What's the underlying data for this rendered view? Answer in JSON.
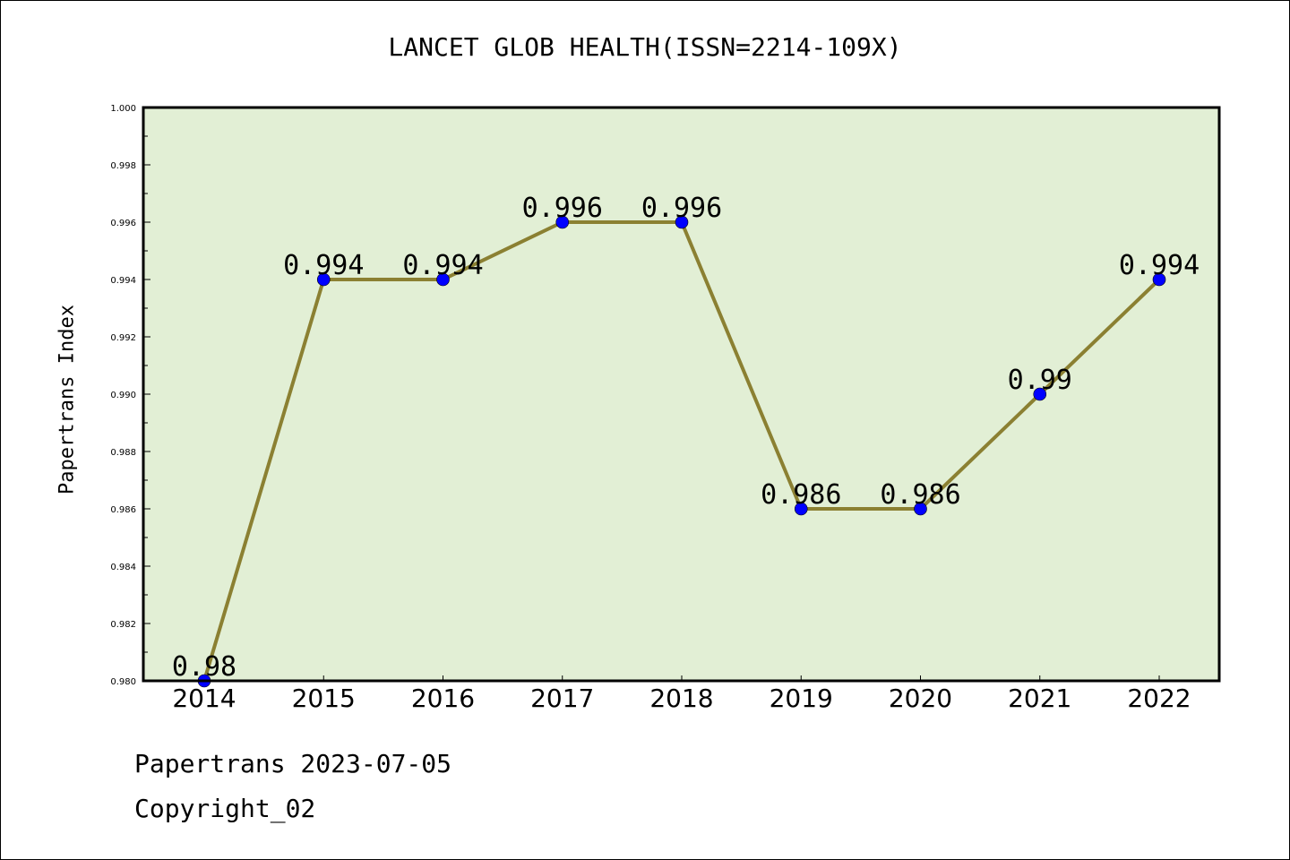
{
  "chart_data": {
    "type": "line",
    "title": "LANCET GLOB HEALTH(ISSN=2214-109X)",
    "ylabel": "Papertrans Index",
    "xlabel": "",
    "x": [
      "2014",
      "2015",
      "2016",
      "2017",
      "2018",
      "2019",
      "2020",
      "2021",
      "2022"
    ],
    "values": [
      0.98,
      0.994,
      0.994,
      0.996,
      0.996,
      0.986,
      0.986,
      0.99,
      0.994
    ],
    "data_labels": [
      "0.98",
      "0.994",
      "0.994",
      "0.996",
      "0.996",
      "0.986",
      "0.986",
      "0.99",
      "0.994"
    ],
    "ylim": [
      0.98,
      1.0
    ],
    "yticks": [
      "0.980",
      "0.982",
      "0.984",
      "0.986",
      "0.988",
      "0.990",
      "0.992",
      "0.994",
      "0.996",
      "0.998",
      "1.000"
    ],
    "grid": false,
    "colors": {
      "plot_background": "#e2efd5",
      "line": "#8b8032",
      "marker": "#0000ff"
    }
  },
  "footer": {
    "line1": "Papertrans 2023-07-05",
    "line2": "Copyright_02"
  }
}
